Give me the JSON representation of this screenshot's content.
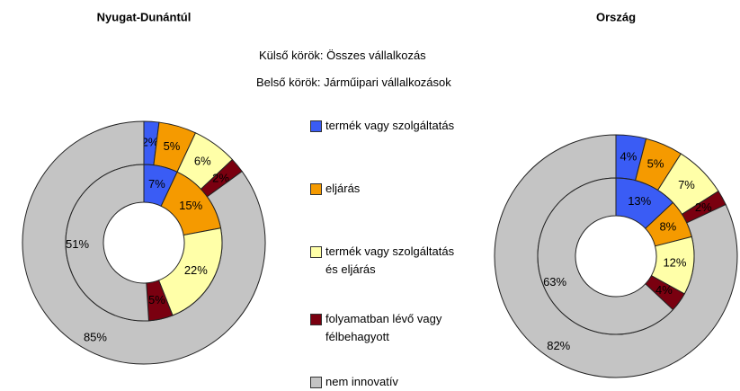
{
  "notes": [
    "Külső körök: Összes vállalkozás",
    "Belső körök: Járműipari vállalkozások"
  ],
  "chart_data": [
    {
      "type": "donut",
      "title": "Nyugat-Dunántúl",
      "categories": [
        "termék vagy szolgáltatás",
        "eljárás",
        "termék vagy szolgáltatás és eljárás",
        "folyamatban lévő vagy félbehagyott",
        "nem innovatív"
      ],
      "colors": [
        "#3a5cf5",
        "#f59a00",
        "#ffffa8",
        "#7a0010",
        "#c4c4c4"
      ],
      "series": [
        {
          "values": [
            2,
            5,
            6,
            2,
            85
          ],
          "value_labels": [
            "2%",
            "5%",
            "6%",
            "2%",
            "85%"
          ]
        },
        {
          "values": [
            7,
            15,
            22,
            5,
            51
          ],
          "value_labels": [
            "7%",
            "15%",
            "22%",
            "5%",
            "51%"
          ]
        }
      ]
    },
    {
      "type": "donut",
      "title": "Ország",
      "categories": [
        "termék vagy szolgáltatás",
        "eljárás",
        "termék vagy szolgáltatás és eljárás",
        "folyamatban lévő vagy félbehagyott",
        "nem innovatív"
      ],
      "colors": [
        "#3a5cf5",
        "#f59a00",
        "#ffffa8",
        "#7a0010",
        "#c4c4c4"
      ],
      "series": [
        {
          "values": [
            4,
            5,
            7,
            2,
            82
          ],
          "value_labels": [
            "4%",
            "5%",
            "7%",
            "2%",
            "82%"
          ]
        },
        {
          "values": [
            13,
            8,
            12,
            4,
            63
          ],
          "value_labels": [
            "13%",
            "8%",
            "12%",
            "4%",
            "63%"
          ]
        }
      ]
    }
  ]
}
